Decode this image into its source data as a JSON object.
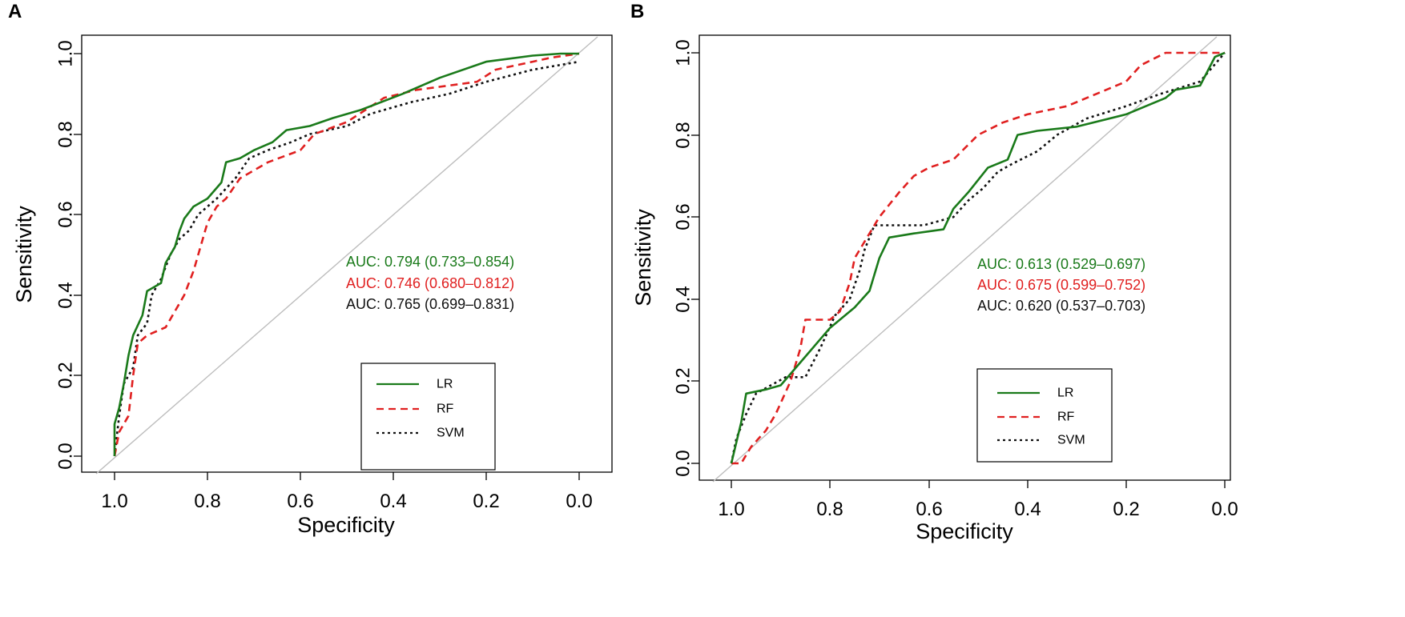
{
  "chart_data": [
    {
      "panel": "A",
      "type": "line",
      "xlabel": "Specificity",
      "ylabel": "Sensitivity",
      "xlim": [
        1.0,
        0.0
      ],
      "ylim": [
        0.0,
        1.0
      ],
      "x_ticks": [
        "1.0",
        "0.8",
        "0.6",
        "0.4",
        "0.2",
        "0.0"
      ],
      "y_ticks": [
        "0.0",
        "0.2",
        "0.4",
        "0.6",
        "0.8",
        "1.0"
      ],
      "auc_labels": [
        {
          "text": "AUC: 0.794 (0.733–0.854)",
          "color": "#1a7a1a"
        },
        {
          "text": "AUC: 0.746 (0.680–0.812)",
          "color": "#e02020"
        },
        {
          "text": "AUC: 0.765 (0.699–0.831)",
          "color": "#111111"
        }
      ],
      "legend": [
        {
          "name": "LR",
          "color": "#1a7a1a",
          "style": "solid"
        },
        {
          "name": "RF",
          "color": "#e02020",
          "style": "dashed"
        },
        {
          "name": "SVM",
          "color": "#111111",
          "style": "dotted"
        }
      ],
      "series": [
        {
          "name": "LR",
          "points": [
            [
              1.0,
              0.0
            ],
            [
              1.0,
              0.08
            ],
            [
              0.99,
              0.12
            ],
            [
              0.98,
              0.18
            ],
            [
              0.97,
              0.25
            ],
            [
              0.96,
              0.3
            ],
            [
              0.94,
              0.35
            ],
            [
              0.93,
              0.41
            ],
            [
              0.9,
              0.43
            ],
            [
              0.89,
              0.48
            ],
            [
              0.87,
              0.52
            ],
            [
              0.86,
              0.56
            ],
            [
              0.85,
              0.59
            ],
            [
              0.83,
              0.62
            ],
            [
              0.8,
              0.64
            ],
            [
              0.77,
              0.68
            ],
            [
              0.76,
              0.73
            ],
            [
              0.73,
              0.74
            ],
            [
              0.7,
              0.76
            ],
            [
              0.66,
              0.78
            ],
            [
              0.63,
              0.81
            ],
            [
              0.58,
              0.82
            ],
            [
              0.53,
              0.84
            ],
            [
              0.47,
              0.86
            ],
            [
              0.38,
              0.9
            ],
            [
              0.3,
              0.94
            ],
            [
              0.2,
              0.98
            ],
            [
              0.1,
              0.995
            ],
            [
              0.04,
              1.0
            ],
            [
              0.0,
              1.0
            ]
          ]
        },
        {
          "name": "RF",
          "points": [
            [
              1.0,
              0.0
            ],
            [
              0.99,
              0.06
            ],
            [
              0.97,
              0.1
            ],
            [
              0.96,
              0.2
            ],
            [
              0.95,
              0.28
            ],
            [
              0.93,
              0.3
            ],
            [
              0.89,
              0.32
            ],
            [
              0.87,
              0.36
            ],
            [
              0.85,
              0.4
            ],
            [
              0.83,
              0.46
            ],
            [
              0.81,
              0.54
            ],
            [
              0.8,
              0.58
            ],
            [
              0.78,
              0.62
            ],
            [
              0.76,
              0.64
            ],
            [
              0.73,
              0.69
            ],
            [
              0.7,
              0.71
            ],
            [
              0.67,
              0.73
            ],
            [
              0.6,
              0.76
            ],
            [
              0.57,
              0.8
            ],
            [
              0.5,
              0.83
            ],
            [
              0.42,
              0.89
            ],
            [
              0.35,
              0.91
            ],
            [
              0.22,
              0.93
            ],
            [
              0.18,
              0.96
            ],
            [
              0.1,
              0.98
            ],
            [
              0.06,
              0.99
            ],
            [
              0.0,
              1.0
            ]
          ]
        },
        {
          "name": "SVM",
          "points": [
            [
              1.0,
              0.0
            ],
            [
              0.99,
              0.1
            ],
            [
              0.98,
              0.18
            ],
            [
              0.96,
              0.22
            ],
            [
              0.95,
              0.3
            ],
            [
              0.93,
              0.33
            ],
            [
              0.92,
              0.4
            ],
            [
              0.9,
              0.44
            ],
            [
              0.88,
              0.5
            ],
            [
              0.86,
              0.54
            ],
            [
              0.84,
              0.56
            ],
            [
              0.82,
              0.6
            ],
            [
              0.78,
              0.64
            ],
            [
              0.74,
              0.69
            ],
            [
              0.71,
              0.74
            ],
            [
              0.67,
              0.76
            ],
            [
              0.62,
              0.78
            ],
            [
              0.58,
              0.8
            ],
            [
              0.5,
              0.82
            ],
            [
              0.45,
              0.85
            ],
            [
              0.36,
              0.88
            ],
            [
              0.28,
              0.9
            ],
            [
              0.2,
              0.93
            ],
            [
              0.1,
              0.96
            ],
            [
              0.0,
              0.98
            ]
          ]
        }
      ]
    },
    {
      "panel": "B",
      "type": "line",
      "xlabel": "Specificity",
      "ylabel": "Sensitivity",
      "xlim": [
        1.0,
        0.0
      ],
      "ylim": [
        0.0,
        1.0
      ],
      "x_ticks": [
        "1.0",
        "0.8",
        "0.6",
        "0.4",
        "0.2",
        "0.0"
      ],
      "y_ticks": [
        "0.0",
        "0.2",
        "0.4",
        "0.6",
        "0.8",
        "1.0"
      ],
      "auc_labels": [
        {
          "text": "AUC: 0.613 (0.529–0.697)",
          "color": "#1a7a1a"
        },
        {
          "text": "AUC: 0.675 (0.599–0.752)",
          "color": "#e02020"
        },
        {
          "text": "AUC: 0.620 (0.537–0.703)",
          "color": "#111111"
        }
      ],
      "legend": [
        {
          "name": "LR",
          "color": "#1a7a1a",
          "style": "solid"
        },
        {
          "name": "RF",
          "color": "#e02020",
          "style": "dashed"
        },
        {
          "name": "SVM",
          "color": "#111111",
          "style": "dotted"
        }
      ],
      "series": [
        {
          "name": "LR",
          "points": [
            [
              1.0,
              0.0
            ],
            [
              0.98,
              0.1
            ],
            [
              0.97,
              0.17
            ],
            [
              0.93,
              0.18
            ],
            [
              0.9,
              0.19
            ],
            [
              0.85,
              0.26
            ],
            [
              0.8,
              0.33
            ],
            [
              0.75,
              0.38
            ],
            [
              0.72,
              0.42
            ],
            [
              0.7,
              0.5
            ],
            [
              0.68,
              0.55
            ],
            [
              0.63,
              0.56
            ],
            [
              0.57,
              0.57
            ],
            [
              0.55,
              0.62
            ],
            [
              0.52,
              0.66
            ],
            [
              0.48,
              0.72
            ],
            [
              0.44,
              0.74
            ],
            [
              0.42,
              0.8
            ],
            [
              0.38,
              0.81
            ],
            [
              0.3,
              0.82
            ],
            [
              0.2,
              0.85
            ],
            [
              0.12,
              0.89
            ],
            [
              0.1,
              0.91
            ],
            [
              0.05,
              0.92
            ],
            [
              0.02,
              0.99
            ],
            [
              0.0,
              1.0
            ]
          ]
        },
        {
          "name": "RF",
          "points": [
            [
              1.0,
              0.0
            ],
            [
              0.98,
              0.0
            ],
            [
              0.96,
              0.04
            ],
            [
              0.93,
              0.08
            ],
            [
              0.91,
              0.12
            ],
            [
              0.88,
              0.2
            ],
            [
              0.86,
              0.28
            ],
            [
              0.85,
              0.35
            ],
            [
              0.8,
              0.35
            ],
            [
              0.78,
              0.37
            ],
            [
              0.76,
              0.44
            ],
            [
              0.75,
              0.5
            ],
            [
              0.73,
              0.54
            ],
            [
              0.7,
              0.6
            ],
            [
              0.66,
              0.66
            ],
            [
              0.63,
              0.7
            ],
            [
              0.6,
              0.72
            ],
            [
              0.55,
              0.74
            ],
            [
              0.5,
              0.8
            ],
            [
              0.45,
              0.83
            ],
            [
              0.4,
              0.85
            ],
            [
              0.32,
              0.87
            ],
            [
              0.26,
              0.9
            ],
            [
              0.2,
              0.93
            ],
            [
              0.17,
              0.97
            ],
            [
              0.12,
              1.0
            ],
            [
              0.0,
              1.0
            ]
          ]
        },
        {
          "name": "SVM",
          "points": [
            [
              1.0,
              0.0
            ],
            [
              0.99,
              0.06
            ],
            [
              0.97,
              0.12
            ],
            [
              0.95,
              0.17
            ],
            [
              0.92,
              0.19
            ],
            [
              0.89,
              0.21
            ],
            [
              0.85,
              0.21
            ],
            [
              0.82,
              0.28
            ],
            [
              0.79,
              0.36
            ],
            [
              0.76,
              0.4
            ],
            [
              0.74,
              0.47
            ],
            [
              0.73,
              0.52
            ],
            [
              0.71,
              0.58
            ],
            [
              0.67,
              0.58
            ],
            [
              0.61,
              0.58
            ],
            [
              0.55,
              0.6
            ],
            [
              0.52,
              0.64
            ],
            [
              0.49,
              0.67
            ],
            [
              0.46,
              0.71
            ],
            [
              0.43,
              0.73
            ],
            [
              0.38,
              0.76
            ],
            [
              0.34,
              0.8
            ],
            [
              0.28,
              0.84
            ],
            [
              0.2,
              0.87
            ],
            [
              0.13,
              0.9
            ],
            [
              0.05,
              0.93
            ],
            [
              0.0,
              1.0
            ]
          ]
        }
      ]
    }
  ],
  "panels": {
    "A": {
      "label": "A"
    },
    "B": {
      "label": "B"
    }
  },
  "colors": {
    "diagonal": "#bdbdbd",
    "axis": "#000000"
  }
}
